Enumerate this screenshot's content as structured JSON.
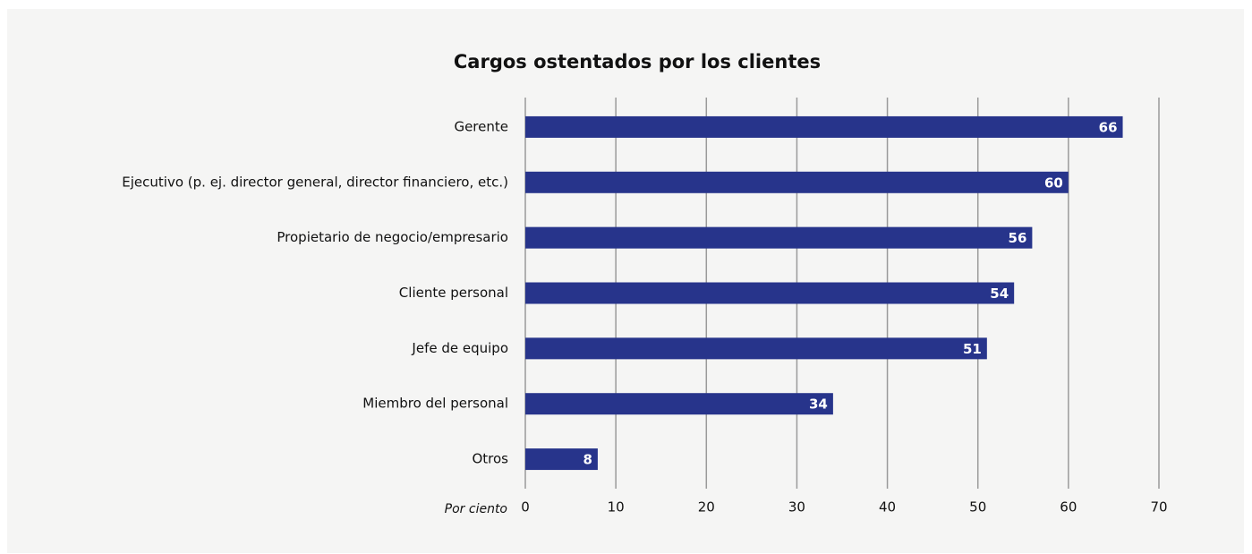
{
  "chart_data": {
    "type": "bar",
    "orientation": "horizontal",
    "title": "Cargos ostentados por los clientes",
    "x_label": "Por ciento",
    "categories": [
      "Gerente",
      "Ejecutivo (p. ej. director general, director financiero, etc.)",
      "Propietario de negocio/empresario",
      "Cliente personal",
      "Jefe de equipo",
      "Miembro del personal",
      "Otros"
    ],
    "values": [
      66,
      60,
      56,
      54,
      51,
      34,
      8
    ],
    "color": "#27348b",
    "xlim": [
      0,
      70
    ],
    "xticks": [
      0,
      10,
      20,
      30,
      40,
      50,
      60,
      70
    ],
    "grid": true
  }
}
